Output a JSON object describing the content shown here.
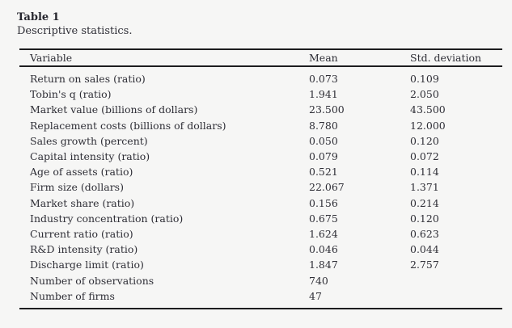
{
  "table_block": {
    "label": "Table 1",
    "caption": "Descriptive statistics.",
    "columns": [
      "Variable",
      "Mean",
      "Std. deviation"
    ],
    "rows": [
      [
        "Return on sales (ratio)",
        "0.073",
        "0.109"
      ],
      [
        "Tobin's q (ratio)",
        "1.941",
        "2.050"
      ],
      [
        "Market value (billions of dollars)",
        "23.500",
        "43.500"
      ],
      [
        "Replacement costs (billions of dollars)",
        "8.780",
        "12.000"
      ],
      [
        "Sales growth (percent)",
        "0.050",
        "0.120"
      ],
      [
        "Capital intensity (ratio)",
        "0.079",
        "0.072"
      ],
      [
        "Age of assets (ratio)",
        "0.521",
        "0.114"
      ],
      [
        "Firm size (dollars)",
        "22.067",
        "1.371"
      ],
      [
        "Market share (ratio)",
        "0.156",
        "0.214"
      ],
      [
        "Industry concentration (ratio)",
        "0.675",
        "0.120"
      ],
      [
        "Current ratio (ratio)",
        "1.624",
        "0.623"
      ],
      [
        "R&D intensity (ratio)",
        "0.046",
        "0.044"
      ],
      [
        "Discharge limit (ratio)",
        "1.847",
        "2.757"
      ],
      [
        "Number of observations",
        "740",
        ""
      ],
      [
        "Number of firms",
        "47",
        ""
      ]
    ],
    "colors": {
      "page_background": "#f6f6f5",
      "text": "#2e2e36",
      "rule": "#1d1d1f"
    }
  }
}
